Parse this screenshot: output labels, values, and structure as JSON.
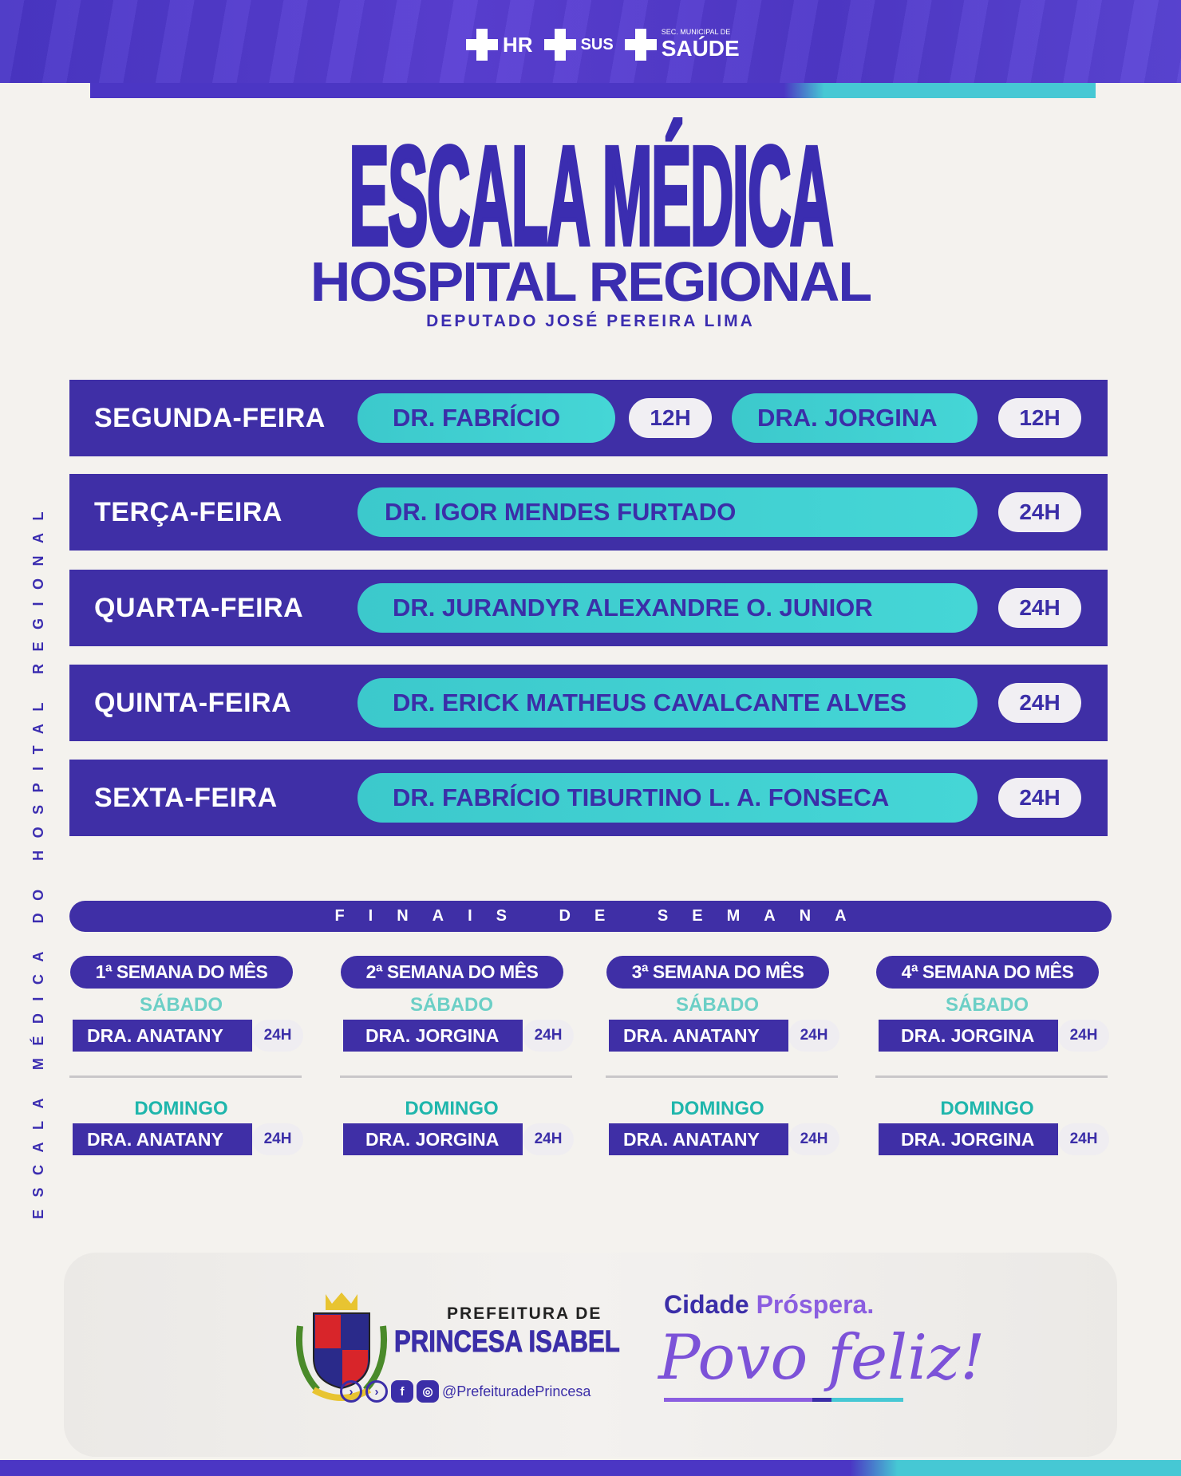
{
  "header": {
    "logos": [
      {
        "name": "hr-logo",
        "text": "HR"
      },
      {
        "name": "sus-logo",
        "text": "SUS"
      },
      {
        "name": "saude-logo",
        "text_top": "SEC. MUNICIPAL DE",
        "text": "SAÚDE"
      }
    ]
  },
  "title": "ESCALA MÉDICA",
  "subtitle": "HOSPITAL REGIONAL",
  "subsubtitle": "DEPUTADO JOSÉ PEREIRA LIMA",
  "vertical_text": "ESCALA MÉDICA DO HOSPITAL REGIONAL",
  "weekdays": [
    {
      "day": "SEGUNDA-FEIRA",
      "shifts": [
        {
          "doctor": "DR. FABRÍCIO",
          "hours": "12H"
        },
        {
          "doctor": "DRA. JORGINA",
          "hours": "12H"
        }
      ]
    },
    {
      "day": "TERÇA-FEIRA",
      "shifts": [
        {
          "doctor": "DR. IGOR MENDES FURTADO",
          "hours": "24H"
        }
      ]
    },
    {
      "day": "QUARTA-FEIRA",
      "shifts": [
        {
          "doctor": "DR. JURANDYR ALEXANDRE O. JUNIOR",
          "hours": "24H"
        }
      ]
    },
    {
      "day": "QUINTA-FEIRA",
      "shifts": [
        {
          "doctor": "DR. ERICK MATHEUS CAVALCANTE ALVES",
          "hours": "24H"
        }
      ]
    },
    {
      "day": "SEXTA-FEIRA",
      "shifts": [
        {
          "doctor": "DR. FABRÍCIO TIBURTINO L. A. FONSECA",
          "hours": "24H"
        }
      ]
    }
  ],
  "weekend": {
    "title": "FINAIS DE SEMANA",
    "saturday_label": "SÁBADO",
    "sunday_label": "DOMINGO",
    "weeks": [
      {
        "label": "1ª SEMANA DO MÊS",
        "saturday": "DRA. ANATANY",
        "saturday_hours": "24H",
        "sunday": "DRA. ANATANY",
        "sunday_hours": "24H"
      },
      {
        "label": "2ª SEMANA DO MÊS",
        "saturday": "DRA. JORGINA",
        "saturday_hours": "24H",
        "sunday": "DRA. JORGINA",
        "sunday_hours": "24H"
      },
      {
        "label": "3ª SEMANA DO MÊS",
        "saturday": "DRA. ANATANY",
        "saturday_hours": "24H",
        "sunday": "DRA. ANATANY",
        "sunday_hours": "24H"
      },
      {
        "label": "4ª SEMANA DO MÊS",
        "saturday": "DRA. JORGINA",
        "saturday_hours": "24H",
        "sunday": "DRA. JORGINA",
        "sunday_hours": "24H"
      }
    ]
  },
  "footer": {
    "prefeitura_top": "PREFEITURA DE",
    "prefeitura_name": "PRINCESA ISABEL",
    "social_handle": "@PrefeituradePrincesa",
    "slogan_1a": "Cidade ",
    "slogan_1b": "Próspera.",
    "slogan_2": "Povo feliz!"
  },
  "colors": {
    "purple": "#3f2fa6",
    "teal": "#3ccfcf",
    "background": "#f4f2ee"
  }
}
